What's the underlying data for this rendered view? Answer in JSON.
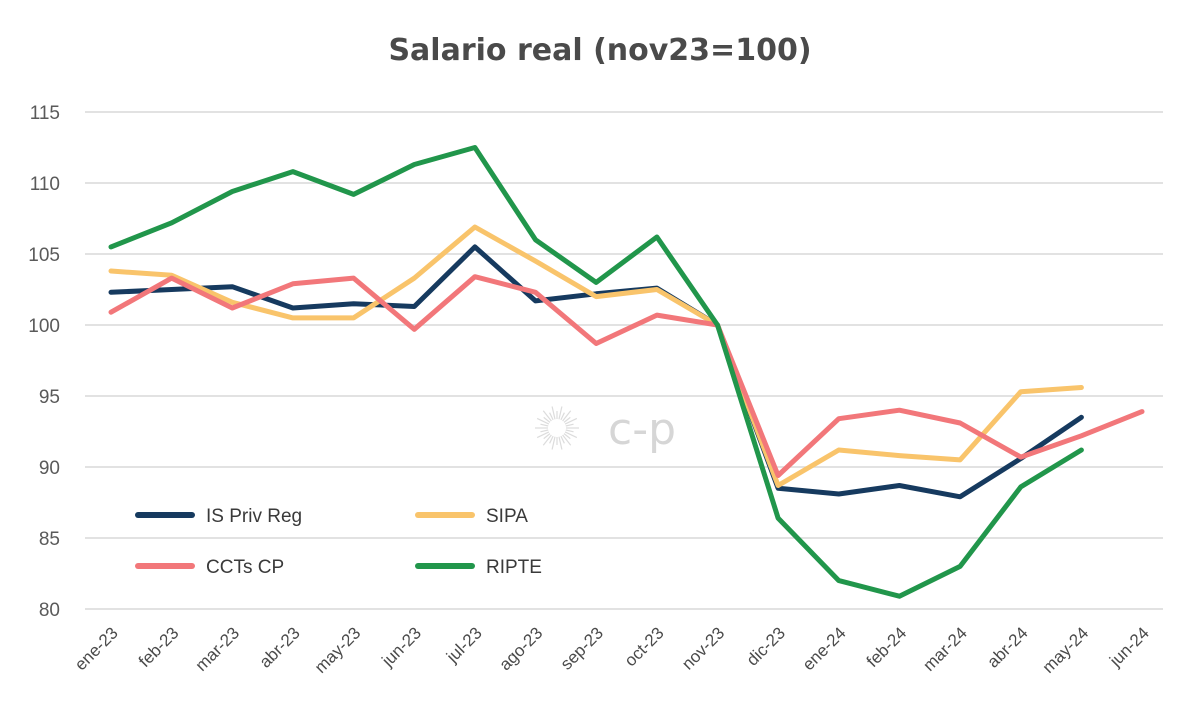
{
  "chart_data": {
    "type": "line",
    "title": "Salario real (nov23=100)",
    "xlabel": "",
    "ylabel": "",
    "categories": [
      "ene-23",
      "feb-23",
      "mar-23",
      "abr-23",
      "may-23",
      "jun-23",
      "jul-23",
      "ago-23",
      "sep-23",
      "oct-23",
      "nov-23",
      "dic-23",
      "ene-24",
      "feb-24",
      "mar-24",
      "abr-24",
      "may-24",
      "jun-24"
    ],
    "ylim": [
      80,
      115
    ],
    "yticks": [
      "80",
      "85",
      "90",
      "95",
      "100",
      "105",
      "110",
      "115"
    ],
    "grid": true,
    "legend_position": "bottom-left",
    "series": [
      {
        "name": "IS Priv Reg",
        "color": "#163a5f",
        "values": [
          102.3,
          102.5,
          102.7,
          101.2,
          101.5,
          101.3,
          105.5,
          101.7,
          102.2,
          102.6,
          100.0,
          88.5,
          88.1,
          88.7,
          87.9,
          90.6,
          93.5,
          null
        ]
      },
      {
        "name": "SIPA",
        "color": "#f9c46b",
        "values": [
          103.8,
          103.5,
          101.6,
          100.5,
          100.5,
          103.3,
          106.9,
          104.5,
          102.0,
          102.5,
          100.0,
          88.7,
          91.2,
          90.8,
          90.5,
          95.3,
          95.6,
          null
        ]
      },
      {
        "name": "CCTs CP",
        "color": "#f2777a",
        "values": [
          100.9,
          103.3,
          101.2,
          102.9,
          103.3,
          99.7,
          103.4,
          102.3,
          98.7,
          100.7,
          100.0,
          89.4,
          93.4,
          94.0,
          93.1,
          90.7,
          92.2,
          93.9
        ]
      },
      {
        "name": "RIPTE",
        "color": "#21964b",
        "values": [
          105.5,
          107.2,
          109.4,
          110.8,
          109.2,
          111.3,
          112.5,
          106.0,
          103.0,
          106.2,
          100.0,
          86.4,
          82.0,
          80.9,
          83.0,
          88.6,
          91.2,
          null
        ]
      }
    ]
  },
  "watermark": {
    "text": "c-p"
  }
}
